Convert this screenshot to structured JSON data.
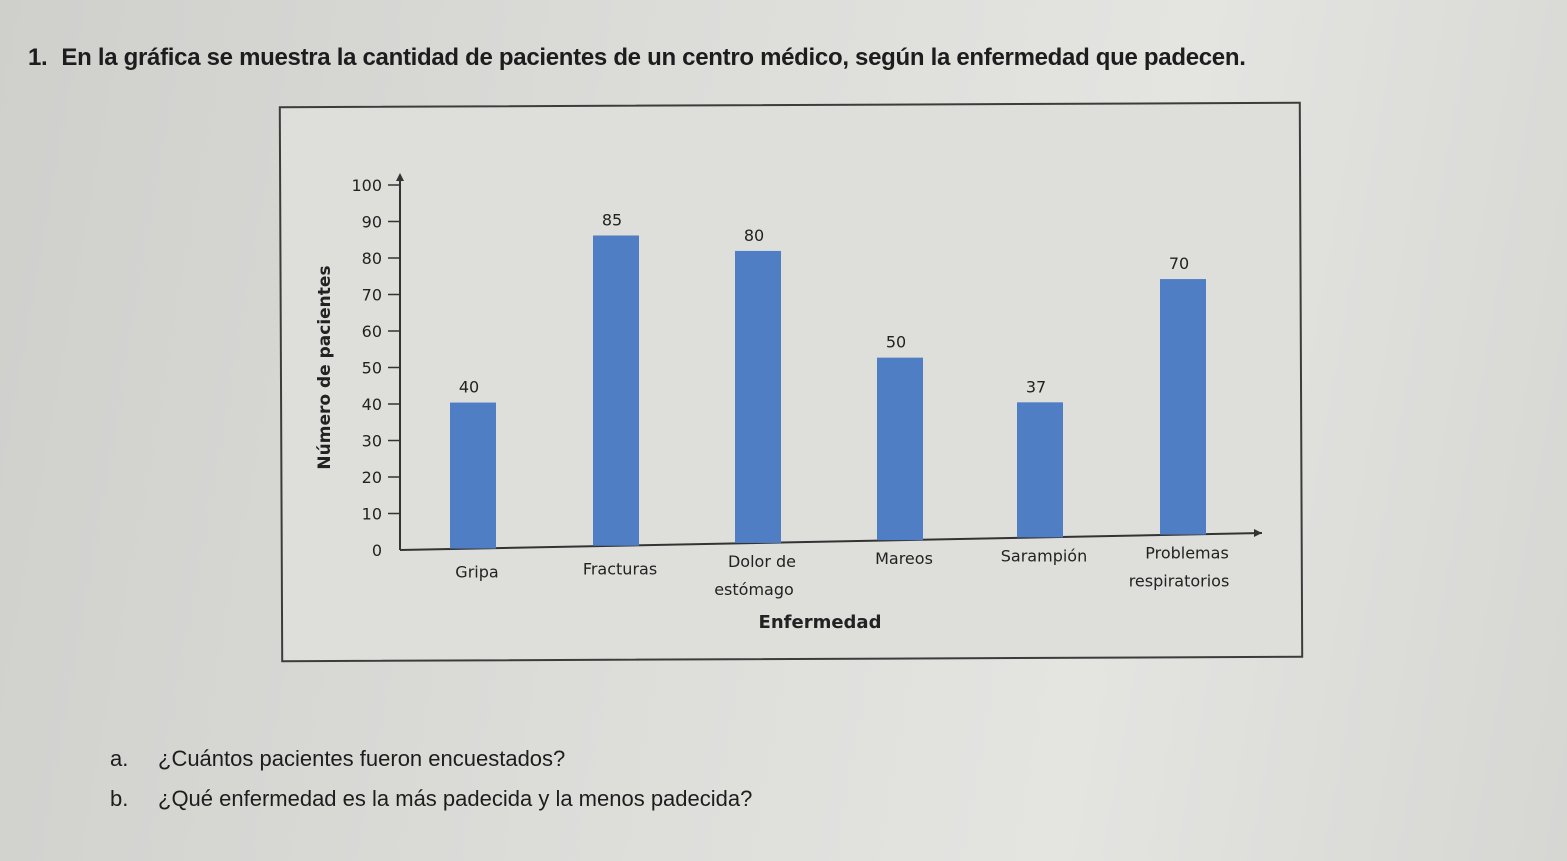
{
  "question": {
    "number": "1.",
    "text": "En la gráfica se muestra la cantidad de pacientes de un centro médico, según la enfermedad que padecen."
  },
  "chart_data": {
    "type": "bar",
    "title": "",
    "xlabel": "Enfermedad",
    "ylabel": "Número de pacientes",
    "ylim": [
      0,
      100
    ],
    "yticks": [
      0,
      10,
      20,
      30,
      40,
      50,
      60,
      70,
      80,
      90,
      100
    ],
    "categories": [
      [
        "Gripa"
      ],
      [
        "Fracturas"
      ],
      [
        "Dolor de",
        "estómago"
      ],
      [
        "Mareos"
      ],
      [
        "Sarampión"
      ],
      [
        "Problemas",
        "respiratorios"
      ]
    ],
    "values": [
      40,
      85,
      80,
      50,
      37,
      70
    ],
    "data_labels": [
      "40",
      "85",
      "80",
      "50",
      "37",
      "70"
    ],
    "bar_color": "#4f7ec4",
    "grid": false
  },
  "subquestions": [
    {
      "letter": "a.",
      "text": "¿Cuántos pacientes fueron encuestados?"
    },
    {
      "letter": "b.",
      "text": "¿Qué enfermedad es la más padecida y la menos padecida?"
    }
  ]
}
